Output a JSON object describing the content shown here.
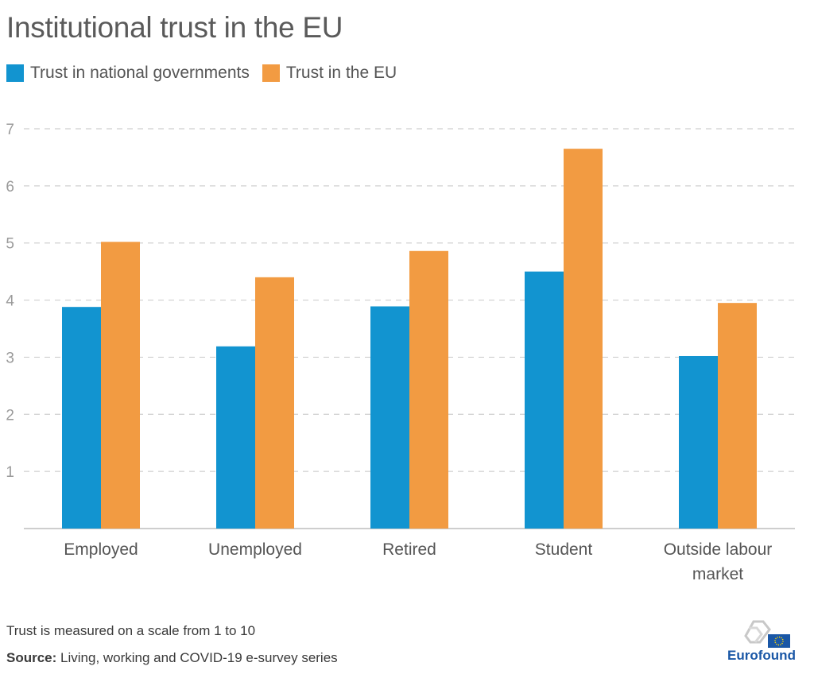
{
  "title": "Institutional trust in the EU",
  "colors": {
    "national": "#1294d0",
    "eu": "#f29b42",
    "grid": "#cfcfcf",
    "axis": "#bdbdbd"
  },
  "chart_data": {
    "type": "bar",
    "categories": [
      "Employed",
      "Unemployed",
      "Retired",
      "Student",
      "Outside labour market"
    ],
    "category_lines": [
      [
        "Employed"
      ],
      [
        "Unemployed"
      ],
      [
        "Retired"
      ],
      [
        "Student"
      ],
      [
        "Outside labour",
        "market"
      ]
    ],
    "series": [
      {
        "name": "Trust in national governments",
        "values": [
          3.88,
          3.19,
          3.89,
          4.5,
          3.02
        ]
      },
      {
        "name": "Trust in the EU",
        "values": [
          5.02,
          4.4,
          4.86,
          6.65,
          3.95
        ]
      }
    ],
    "yticks": [
      1,
      2,
      3,
      4,
      5,
      6,
      7
    ],
    "ylim": [
      0,
      7
    ],
    "grid": true,
    "legend": "top-left",
    "xlabel": "",
    "ylabel": ""
  },
  "footer": {
    "note": "Trust is measured on a scale from 1 to 10",
    "source_label": "Source:",
    "source_text": " Living, working and COVID-19 e-survey series",
    "logo_text": "Eurofound"
  }
}
